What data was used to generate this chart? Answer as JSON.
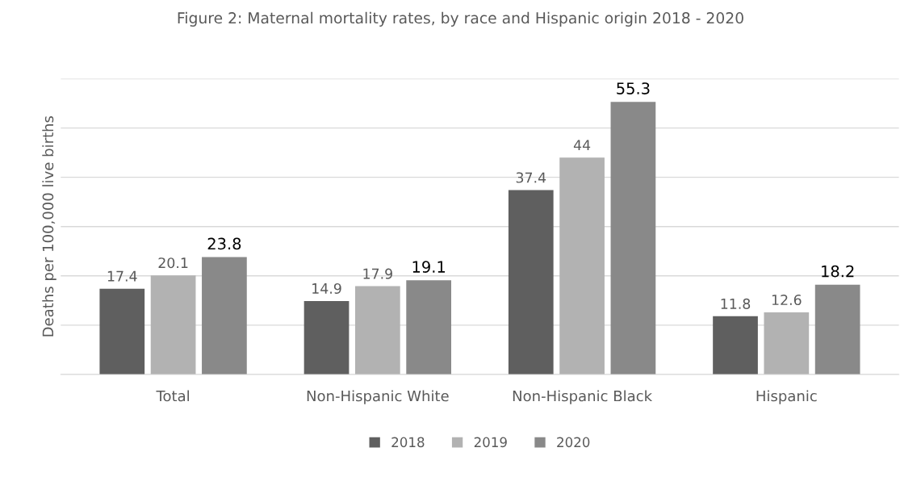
{
  "chart_data": {
    "type": "bar",
    "title": "Figure 2: Maternal mortality rates, by race and Hispanic origin 2018 - 2020",
    "ylabel": "Deaths per 100,000 live births",
    "categories": [
      "Total",
      "Non-Hispanic White",
      "Non-Hispanic Black",
      "Hispanic"
    ],
    "series": [
      {
        "name": "2018",
        "color": "#5f5f5f",
        "values": [
          17.4,
          14.9,
          37.4,
          11.8
        ]
      },
      {
        "name": "2019",
        "color": "#b2b2b2",
        "values": [
          20.1,
          17.9,
          44,
          12.6
        ]
      },
      {
        "name": "2020",
        "color": "#898989",
        "values": [
          23.8,
          19.1,
          55.3,
          18.2
        ]
      }
    ],
    "ylim": [
      0,
      60
    ],
    "yticks": [
      {
        "value": 0,
        "label": null
      },
      {
        "value": 10,
        "label": null
      },
      {
        "value": 20,
        "label": null
      },
      {
        "value": 30,
        "label": null
      },
      {
        "value": 40,
        "label": null
      },
      {
        "value": 50,
        "label": null
      },
      {
        "value": 60,
        "label": null
      }
    ],
    "tick_labels": "x",
    "grid": "y",
    "legend": "bottom",
    "data_labels": true
  }
}
